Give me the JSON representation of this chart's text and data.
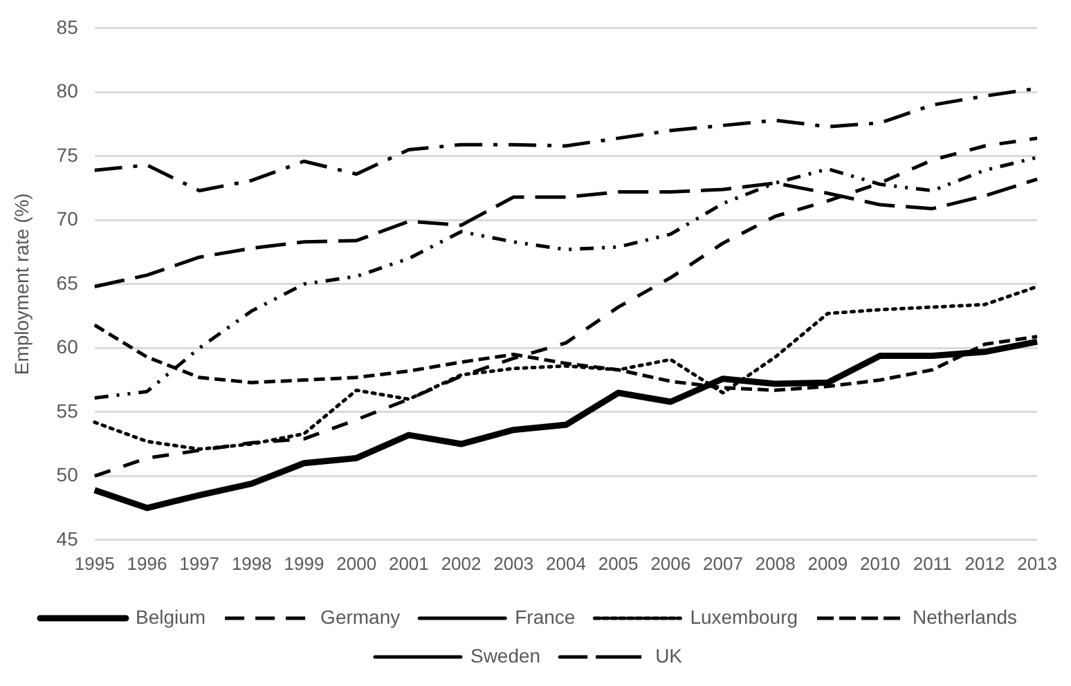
{
  "chart_data": {
    "type": "line",
    "ylabel": "Employment rate (%)",
    "categories": [
      "1995",
      "1996",
      "1997",
      "1998",
      "1999",
      "2000",
      "2001",
      "2002",
      "2003",
      "2004",
      "2005",
      "2006",
      "2007",
      "2008",
      "2009",
      "2010",
      "2011",
      "2012",
      "2013"
    ],
    "ylim": [
      45,
      85
    ],
    "yticks": [
      45,
      50,
      55,
      60,
      65,
      70,
      75,
      80,
      85
    ],
    "grid": "y",
    "legend": "bottom",
    "marker": "none",
    "series": [
      {
        "name": "Belgium",
        "color": "#000000",
        "line_style": "solid",
        "values": [
          48.9,
          47.5,
          48.5,
          49.4,
          51.0,
          51.4,
          53.2,
          52.5,
          53.6,
          54.0,
          56.5,
          55.8,
          57.6,
          57.2,
          57.3,
          59.4,
          59.4,
          59.7,
          60.5
        ]
      },
      {
        "name": "Germany",
        "color": "#000000",
        "line_style": "dashed",
        "values": [
          50.0,
          51.4,
          52.0,
          52.6,
          52.9,
          54.4,
          56.0,
          57.8,
          59.2,
          60.4,
          63.2,
          65.5,
          68.2,
          70.3,
          71.5,
          72.9,
          74.7,
          75.8,
          76.4
        ]
      },
      {
        "name": "France",
        "color": "#000000",
        "line_style": "dashed",
        "values": [
          61.8,
          59.3,
          57.7,
          57.3,
          57.5,
          57.7,
          58.2,
          58.9,
          59.5,
          58.8,
          58.3,
          57.4,
          56.9,
          56.7,
          57.0,
          57.5,
          58.3,
          60.3,
          60.9
        ]
      },
      {
        "name": "Luxembourg",
        "color": "#000000",
        "line_style": "dotted",
        "values": [
          54.2,
          52.7,
          52.1,
          52.5,
          53.3,
          56.7,
          56.0,
          57.9,
          58.4,
          58.6,
          58.3,
          59.1,
          56.5,
          59.3,
          62.7,
          63.0,
          63.2,
          63.4,
          64.8
        ]
      },
      {
        "name": "Netherlands",
        "color": "#000000",
        "line_style": "dashed",
        "values": [
          56.1,
          56.6,
          60.0,
          62.9,
          65.0,
          65.6,
          67.0,
          69.1,
          68.3,
          67.7,
          67.9,
          68.9,
          71.3,
          72.9,
          74.0,
          72.8,
          72.3,
          73.9,
          74.9
        ]
      },
      {
        "name": "Sweden",
        "color": "#000000",
        "line_style": "dashed",
        "values": [
          64.8,
          65.7,
          67.1,
          67.8,
          68.3,
          68.4,
          69.9,
          69.6,
          71.8,
          71.8,
          72.2,
          72.2,
          72.4,
          72.9,
          72.1,
          71.2,
          70.9,
          71.9,
          73.2
        ]
      },
      {
        "name": "UK",
        "color": "#000000",
        "line_style": "dashed",
        "values": [
          73.9,
          74.3,
          72.3,
          73.1,
          74.6,
          73.6,
          75.5,
          75.9,
          75.9,
          75.8,
          76.4,
          77.0,
          77.4,
          77.8,
          77.3,
          77.6,
          79.0,
          79.7,
          80.3
        ]
      }
    ]
  }
}
